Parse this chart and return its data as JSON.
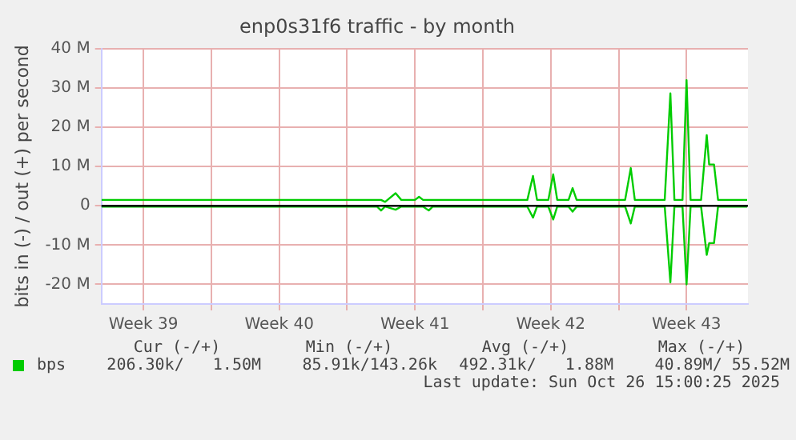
{
  "chart_data": {
    "type": "line",
    "title": "enp0s31f6 traffic - by month",
    "ylabel": "bits in (-) / out (+) per second",
    "xlim": [
      "2025-09-23T08:00",
      "2025-10-26T16:00"
    ],
    "xticks": [
      {
        "value": "2025-09-25T12:00",
        "label": "Week 39"
      },
      {
        "value": "2025-09-29",
        "label": null
      },
      {
        "value": "2025-10-02T12:00",
        "label": "Week 40"
      },
      {
        "value": "2025-10-06",
        "label": null
      },
      {
        "value": "2025-10-09T12:00",
        "label": "Week 41"
      },
      {
        "value": "2025-10-13",
        "label": null
      },
      {
        "value": "2025-10-16T12:00",
        "label": "Week 42"
      },
      {
        "value": "2025-10-20",
        "label": null
      },
      {
        "value": "2025-10-23T12:00",
        "label": "Week 43"
      }
    ],
    "ylim": [
      -25,
      40
    ],
    "yticks": [
      {
        "value": -20,
        "label": "-20 M"
      },
      {
        "value": -10,
        "label": "-10 M"
      },
      {
        "value": 0,
        "label": "0"
      },
      {
        "value": 10,
        "label": "10 M"
      },
      {
        "value": 20,
        "label": "20 M"
      },
      {
        "value": 30,
        "label": "30 M"
      },
      {
        "value": 40,
        "label": "40 M"
      }
    ],
    "grid": true,
    "legend": "bottom left",
    "marker": "none",
    "line_style": "solid",
    "ref_lines": [
      {
        "axis": "y",
        "value": 0,
        "color": "#000000"
      }
    ],
    "series": [
      {
        "name": "bps",
        "color": "#00cc00",
        "x": [
          "2025-09-23T08:00",
          "2025-10-07T18:00",
          "2025-10-07T23:00",
          "2025-10-08T12:00",
          "2025-10-08T19:00",
          "2025-10-09T12:00",
          "2025-10-09T17:00",
          "2025-10-09T22:00",
          "2025-10-10T05:00",
          "2025-10-15T07:00",
          "2025-10-15T14:00",
          "2025-10-15T19:00",
          "2025-10-16T09:00",
          "2025-10-16T15:00",
          "2025-10-16T20:00",
          "2025-10-17T10:00",
          "2025-10-17T15:00",
          "2025-10-17T20:00",
          "2025-10-20T08:00",
          "2025-10-20T15:00",
          "2025-10-20T20:00",
          "2025-10-22T09:00",
          "2025-10-22T16:00",
          "2025-10-22T21:00",
          "2025-10-23T07:00",
          "2025-10-23T12:00",
          "2025-10-23T17:00",
          "2025-10-24T06:00",
          "2025-10-24T13:00",
          "2025-10-24T16:00",
          "2025-10-24T22:00",
          "2025-10-25T03:00",
          "2025-10-26T15:00"
        ],
        "values": [
          1.5,
          1.5,
          1.0,
          3.2,
          1.5,
          1.5,
          2.3,
          1.5,
          1.5,
          1.5,
          7.6,
          1.5,
          1.5,
          8,
          1.5,
          1.5,
          4.5,
          1.5,
          1.5,
          9.6,
          1.5,
          1.5,
          28.6,
          1.5,
          1.5,
          32,
          1.5,
          1.5,
          18,
          10.5,
          10.5,
          1.5,
          1.5
        ]
      },
      {
        "color": "#00cc00",
        "x": [
          "2025-09-23T08:00",
          "2025-10-07T13:00",
          "2025-10-07T18:00",
          "2025-10-07T23:00",
          "2025-10-08T12:00",
          "2025-10-08T19:00",
          "2025-10-09T22:00",
          "2025-10-10T05:00",
          "2025-10-10T10:00",
          "2025-10-15T07:00",
          "2025-10-15T14:00",
          "2025-10-15T19:00",
          "2025-10-16T09:00",
          "2025-10-16T15:00",
          "2025-10-16T20:00",
          "2025-10-17T10:00",
          "2025-10-17T15:00",
          "2025-10-17T20:00",
          "2025-10-20T08:00",
          "2025-10-20T15:00",
          "2025-10-20T20:00",
          "2025-10-22T09:00",
          "2025-10-22T16:00",
          "2025-10-22T21:00",
          "2025-10-23T07:00",
          "2025-10-23T12:00",
          "2025-10-23T17:00",
          "2025-10-24T06:00",
          "2025-10-24T13:00",
          "2025-10-24T16:00",
          "2025-10-24T22:00",
          "2025-10-25T03:00",
          "2025-10-26T15:00"
        ],
        "values": [
          -0.2,
          -0.2,
          -1.2,
          -0.2,
          -1.0,
          -0.2,
          -0.2,
          -1.2,
          -0.2,
          -0.2,
          -3,
          -0.2,
          -0.2,
          -3.5,
          -0.2,
          -0.2,
          -1.5,
          -0.2,
          -0.2,
          -4.5,
          -0.2,
          -0.2,
          -19.5,
          -0.2,
          -0.2,
          -20,
          -0.2,
          -0.2,
          -12.5,
          -9.5,
          -9.5,
          -0.2,
          -0.2
        ]
      }
    ],
    "annotations": [
      "Cur (-/+)",
      "Min (-/+)",
      "Avg (-/+)",
      "Max (-/+)",
      "206.30k/   1.50M",
      "85.91k/143.26k",
      "492.31k/   1.88M",
      "40.89M/ 55.52M",
      "Last update: Sun Oct 26 15:00:25 2025"
    ]
  }
}
